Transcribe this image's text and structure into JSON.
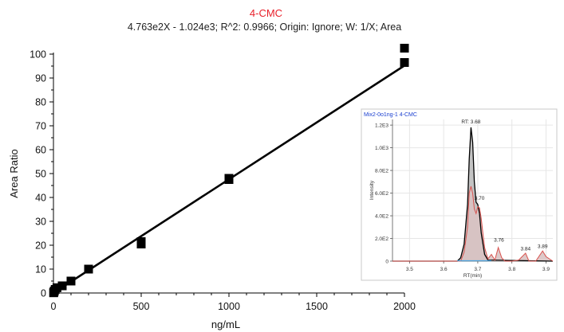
{
  "chart_data": [
    {
      "type": "scatter",
      "title": "4-CMC",
      "subtitle": "4.763e2X - 1.024e3; R^2: 0.9966; Origin: Ignore; W: 1/X; Area",
      "xlabel": "ng/mL",
      "ylabel": "Area Ratio",
      "xlim": [
        0,
        2000
      ],
      "ylim": [
        0,
        105
      ],
      "x_ticks": [
        "0",
        "500",
        "1000",
        "1500",
        "2000"
      ],
      "y_ticks": [
        "0",
        "10",
        "20",
        "30",
        "40",
        "50",
        "60",
        "70",
        "80",
        "90",
        "100"
      ],
      "points": [
        {
          "x": 1,
          "y": 0.1
        },
        {
          "x": 2,
          "y": 0.3
        },
        {
          "x": 5,
          "y": 0.8
        },
        {
          "x": 10,
          "y": 1.5
        },
        {
          "x": 20,
          "y": 2.2
        },
        {
          "x": 50,
          "y": 3.0
        },
        {
          "x": 100,
          "y": 5.0
        },
        {
          "x": 200,
          "y": 10.0
        },
        {
          "x": 500,
          "y": 20.5
        },
        {
          "x": 500,
          "y": 21.5
        },
        {
          "x": 1000,
          "y": 47.5
        },
        {
          "x": 1000,
          "y": 48.0
        },
        {
          "x": 2000,
          "y": 96.5
        },
        {
          "x": 2000,
          "y": 102.5
        }
      ],
      "fit_line": {
        "x": [
          0,
          2000
        ],
        "y": [
          0.0,
          95.2
        ]
      },
      "colors": {
        "points": "#000000",
        "line": "#000000",
        "title": "#e8202a"
      }
    },
    {
      "type": "area",
      "title": "Mix2-0o1ng-1  4-CMC",
      "xlabel": "RT(min)",
      "ylabel": "Intensity",
      "xlim": [
        3.45,
        3.92
      ],
      "ylim": [
        0,
        1250
      ],
      "x_ticks": [
        "3.5",
        "3.6",
        "3.7",
        "3.8",
        "3.9"
      ],
      "y_ticks": [
        "0",
        "2.0E2",
        "4.0E2",
        "6.0E2",
        "8.0E2",
        "1.0E3",
        "1.2E3"
      ],
      "annotations": [
        {
          "label": "RT: 3.68",
          "x": 3.68,
          "y": 1195
        },
        {
          "label": "3.70",
          "x": 3.705,
          "y": 520
        },
        {
          "label": "3.76",
          "x": 3.762,
          "y": 150
        },
        {
          "label": "3.84",
          "x": 3.84,
          "y": 75
        },
        {
          "label": "3.89",
          "x": 3.89,
          "y": 95
        }
      ],
      "series": [
        {
          "x": [
            3.45,
            3.64,
            3.65,
            3.66,
            3.67,
            3.675,
            3.68,
            3.685,
            3.69,
            3.695,
            3.7,
            3.705,
            3.71,
            3.72,
            3.73,
            3.92
          ],
          "y": [
            0,
            0,
            30,
            150,
            500,
            900,
            1180,
            1050,
            700,
            520,
            500,
            420,
            250,
            60,
            10,
            0
          ]
        },
        {
          "x": [
            3.45,
            3.65,
            3.66,
            3.67,
            3.675,
            3.68,
            3.685,
            3.69,
            3.695,
            3.7,
            3.705,
            3.71,
            3.715,
            3.72,
            3.73,
            3.74,
            3.75,
            3.76,
            3.77,
            3.78,
            3.79,
            3.8,
            3.82,
            3.84,
            3.85,
            3.87,
            3.89,
            3.9,
            3.92
          ],
          "y": [
            0,
            0,
            80,
            300,
            600,
            660,
            600,
            460,
            420,
            480,
            470,
            380,
            250,
            120,
            20,
            60,
            10,
            120,
            30,
            0,
            0,
            0,
            10,
            70,
            0,
            0,
            90,
            40,
            0
          ]
        }
      ],
      "colors": {
        "title": "#1a3fd0",
        "outer": "#000000",
        "inner": "#d9534f",
        "inner_fill": "#d9c3c3",
        "outer_fill": "#b8b8b8",
        "baseline": "#4aa3df"
      }
    }
  ]
}
